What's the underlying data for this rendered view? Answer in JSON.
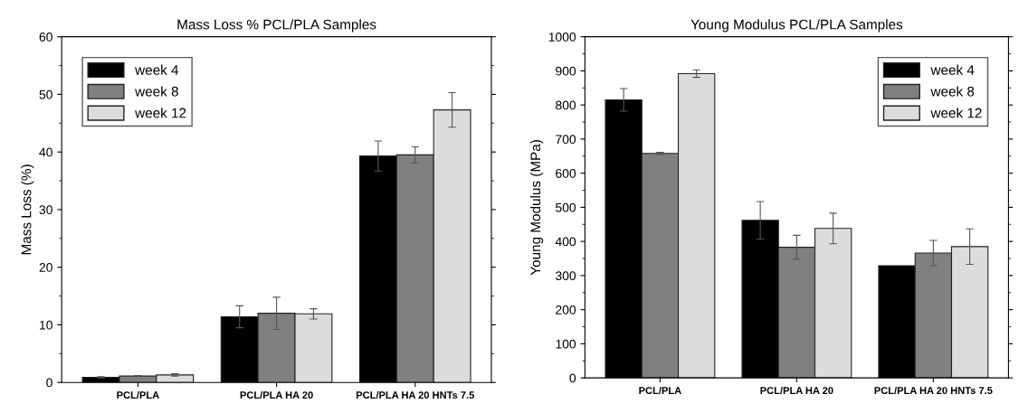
{
  "chart_data": [
    {
      "type": "bar",
      "title": "Mass Loss % PCL/PLA Samples",
      "ylabel": "Mass Loss (%)",
      "categories": [
        "PCL/PLA",
        "PCL/PLA HA 20",
        "PCL/PLA HA 20 HNTs 7.5"
      ],
      "series": [
        {
          "name": "week 4",
          "color": "#000000",
          "values": [
            0.9,
            11.4,
            39.3
          ],
          "errors": [
            0.1,
            1.9,
            2.6
          ]
        },
        {
          "name": "week 8",
          "color": "#808080",
          "values": [
            1.1,
            12.0,
            39.5
          ],
          "errors": [
            0.1,
            2.8,
            1.4
          ]
        },
        {
          "name": "week 12",
          "color": "#dcdcdc",
          "values": [
            1.3,
            11.9,
            47.3
          ],
          "errors": [
            0.2,
            0.9,
            3.0
          ]
        }
      ],
      "ylim": [
        0,
        60
      ],
      "yticks": [
        0,
        10,
        20,
        30,
        40,
        50,
        60
      ],
      "legend": "top left",
      "grid": false
    },
    {
      "type": "bar",
      "title": "Young Modulus PCL/PLA Samples",
      "ylabel": "Young Modulus (MPa)",
      "categories": [
        "PCL/PLA",
        "PCL/PLA HA 20",
        "PCL/PLA HA 20 HNTs 7.5"
      ],
      "series": [
        {
          "name": "week 4",
          "color": "#000000",
          "values": [
            815,
            462,
            329
          ],
          "errors": [
            33,
            55,
            null
          ]
        },
        {
          "name": "week 8",
          "color": "#808080",
          "values": [
            658,
            383,
            366
          ],
          "errors": [
            3,
            35,
            37
          ]
        },
        {
          "name": "week 12",
          "color": "#dcdcdc",
          "values": [
            892,
            438,
            385
          ],
          "errors": [
            11,
            45,
            52
          ]
        }
      ],
      "ylim": [
        0,
        1000
      ],
      "yticks": [
        0,
        100,
        200,
        300,
        400,
        500,
        600,
        700,
        800,
        900,
        1000
      ],
      "legend": "top right",
      "grid": false
    }
  ]
}
